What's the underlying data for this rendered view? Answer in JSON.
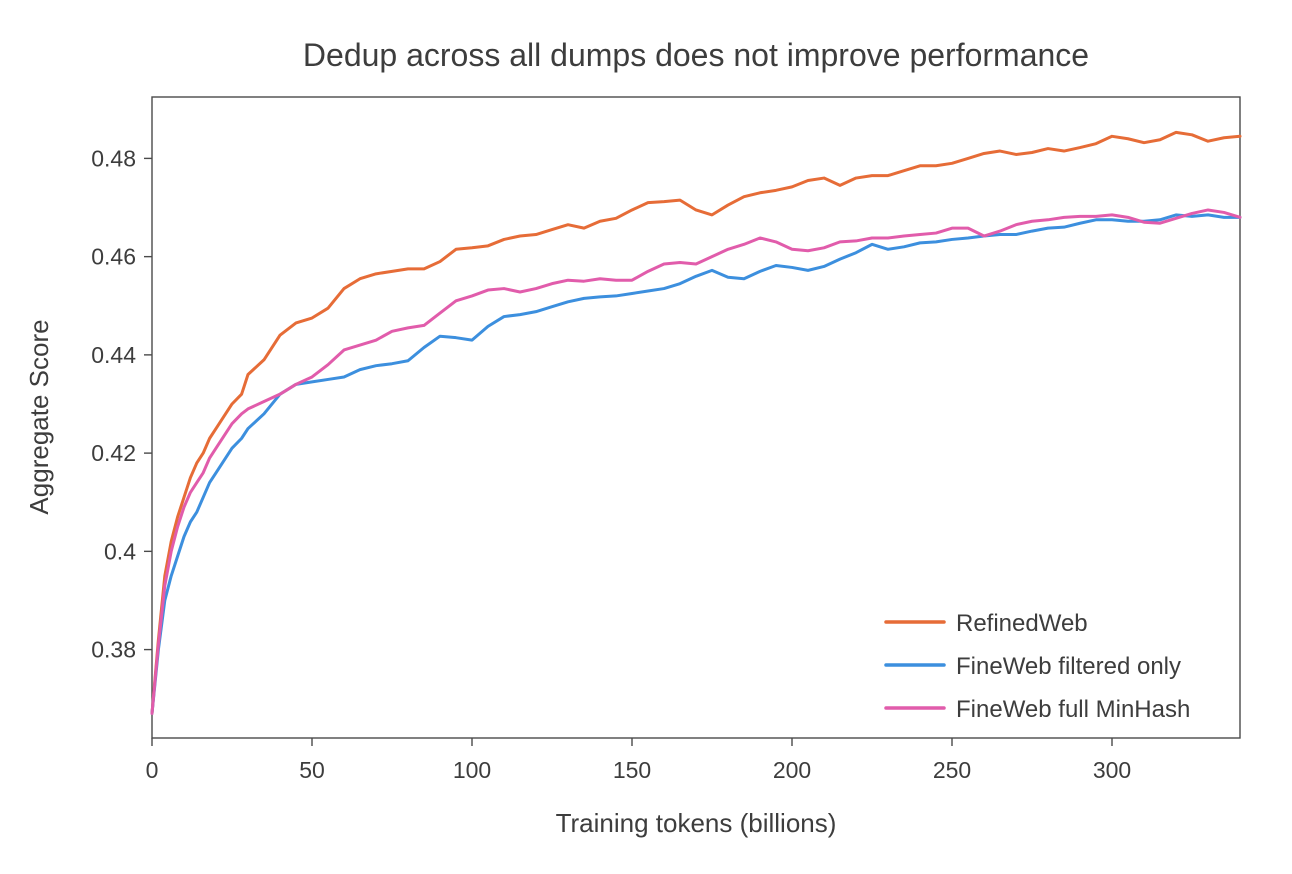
{
  "chart_data": {
    "type": "line",
    "title": "Dedup across all dumps does not improve performance",
    "xlabel": "Training tokens (billions)",
    "ylabel": "Aggregate Score",
    "xlim": [
      0,
      340
    ],
    "ylim": [
      0.362,
      0.4925
    ],
    "x_ticks": [
      0,
      50,
      100,
      150,
      200,
      250,
      300
    ],
    "y_ticks": [
      0.38,
      0.4,
      0.42,
      0.44,
      0.46,
      0.48
    ],
    "y_tick_labels": [
      "0.38",
      "0.4",
      "0.42",
      "0.44",
      "0.46",
      "0.48"
    ],
    "grid": false,
    "legend_position": "bottom-right",
    "x": [
      0,
      2,
      4,
      6,
      8,
      10,
      12,
      14,
      16,
      18,
      20,
      25,
      28,
      30,
      35,
      40,
      45,
      50,
      55,
      60,
      65,
      70,
      75,
      80,
      85,
      90,
      95,
      100,
      105,
      110,
      115,
      120,
      125,
      130,
      135,
      140,
      145,
      150,
      155,
      160,
      165,
      170,
      175,
      180,
      185,
      190,
      195,
      200,
      205,
      210,
      215,
      220,
      225,
      230,
      235,
      240,
      245,
      250,
      255,
      260,
      265,
      270,
      275,
      280,
      285,
      290,
      295,
      300,
      305,
      310,
      315,
      320,
      325,
      330,
      335,
      340
    ],
    "series": [
      {
        "name": "RefinedWeb",
        "color": "#e66c37",
        "values": [
          0.367,
          0.382,
          0.395,
          0.402,
          0.407,
          0.411,
          0.415,
          0.418,
          0.42,
          0.423,
          0.425,
          0.43,
          0.432,
          0.436,
          0.439,
          0.444,
          0.4465,
          0.4475,
          0.4495,
          0.4535,
          0.4555,
          0.4565,
          0.457,
          0.4575,
          0.4575,
          0.459,
          0.4615,
          0.4618,
          0.4622,
          0.4635,
          0.4642,
          0.4645,
          0.4655,
          0.4665,
          0.4658,
          0.4672,
          0.4678,
          0.4695,
          0.471,
          0.4712,
          0.4715,
          0.4695,
          0.4685,
          0.4705,
          0.4722,
          0.473,
          0.4735,
          0.4742,
          0.4755,
          0.476,
          0.4745,
          0.476,
          0.4765,
          0.4765,
          0.4775,
          0.4785,
          0.4785,
          0.479,
          0.48,
          0.481,
          0.4815,
          0.4808,
          0.4812,
          0.482,
          0.4815,
          0.4822,
          0.483,
          0.4845,
          0.484,
          0.4832,
          0.4838,
          0.4853,
          0.4848,
          0.4835,
          0.4842,
          0.4845
        ]
      },
      {
        "name": "FineWeb filtered only",
        "color": "#3c8fde",
        "values": [
          0.367,
          0.38,
          0.39,
          0.395,
          0.399,
          0.403,
          0.406,
          0.408,
          0.411,
          0.414,
          0.416,
          0.421,
          0.423,
          0.425,
          0.428,
          0.432,
          0.434,
          0.4345,
          0.435,
          0.4355,
          0.437,
          0.4378,
          0.4382,
          0.4388,
          0.4415,
          0.4438,
          0.4435,
          0.443,
          0.4458,
          0.4478,
          0.4482,
          0.4488,
          0.4498,
          0.4508,
          0.4515,
          0.4518,
          0.452,
          0.4525,
          0.453,
          0.4535,
          0.4545,
          0.456,
          0.4572,
          0.4558,
          0.4555,
          0.457,
          0.4582,
          0.4578,
          0.4572,
          0.458,
          0.4595,
          0.4608,
          0.4625,
          0.4615,
          0.462,
          0.4628,
          0.463,
          0.4635,
          0.4638,
          0.4642,
          0.4645,
          0.4645,
          0.4652,
          0.4658,
          0.466,
          0.4668,
          0.4675,
          0.4675,
          0.4672,
          0.4672,
          0.4675,
          0.4685,
          0.4682,
          0.4685,
          0.468,
          0.468
        ]
      },
      {
        "name": "FineWeb full MinHash",
        "color": "#e15cab",
        "values": [
          0.367,
          0.381,
          0.393,
          0.4,
          0.405,
          0.409,
          0.412,
          0.414,
          0.416,
          0.419,
          0.421,
          0.426,
          0.428,
          0.429,
          0.4305,
          0.432,
          0.434,
          0.4355,
          0.438,
          0.441,
          0.442,
          0.443,
          0.4448,
          0.4455,
          0.446,
          0.4485,
          0.451,
          0.452,
          0.4532,
          0.4535,
          0.4528,
          0.4535,
          0.4545,
          0.4552,
          0.455,
          0.4555,
          0.4552,
          0.4552,
          0.457,
          0.4585,
          0.4588,
          0.4585,
          0.46,
          0.4615,
          0.4625,
          0.4638,
          0.463,
          0.4615,
          0.4612,
          0.4618,
          0.463,
          0.4632,
          0.4638,
          0.4638,
          0.4642,
          0.4645,
          0.4648,
          0.4658,
          0.4658,
          0.4642,
          0.4652,
          0.4665,
          0.4672,
          0.4675,
          0.468,
          0.4682,
          0.4682,
          0.4685,
          0.468,
          0.467,
          0.4668,
          0.4678,
          0.4688,
          0.4695,
          0.469,
          0.468
        ]
      }
    ]
  }
}
